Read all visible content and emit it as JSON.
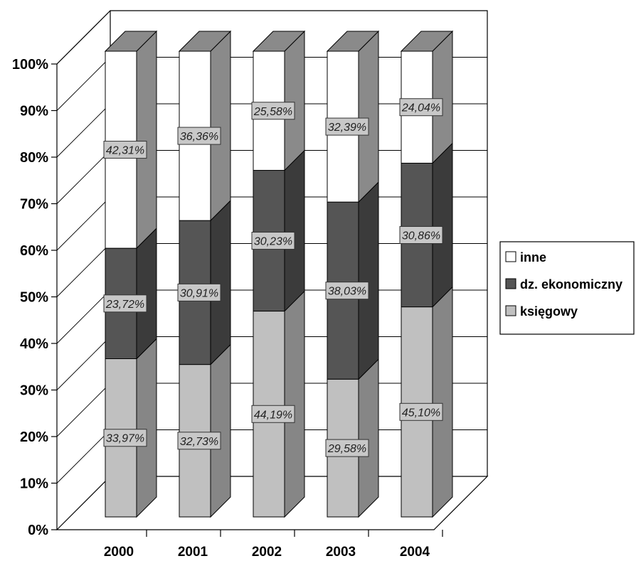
{
  "chart_data": {
    "type": "bar",
    "stacked": "percent",
    "three_d": true,
    "categories": [
      "2000",
      "2001",
      "2002",
      "2003",
      "2004"
    ],
    "series": [
      {
        "name": "księgowy",
        "values": [
          33.97,
          32.73,
          44.19,
          29.58,
          45.1
        ],
        "labels": [
          "33,97%",
          "32,73%",
          "44,19%",
          "29,58%",
          "45,10%"
        ],
        "color": "#c0c0c0"
      },
      {
        "name": "dz. ekonomiczny",
        "values": [
          23.72,
          30.91,
          30.23,
          38.03,
          30.86
        ],
        "labels": [
          "23,72%",
          "30,91%",
          "30,23%",
          "38,03%",
          "30,86%"
        ],
        "color": "#555555"
      },
      {
        "name": "inne",
        "values": [
          42.31,
          36.36,
          25.58,
          32.39,
          24.04
        ],
        "labels": [
          "42,31%",
          "36,36%",
          "25,58%",
          "32,39%",
          "24,04%"
        ],
        "color": "#ffffff"
      }
    ],
    "y_ticks": [
      "0%",
      "10%",
      "20%",
      "30%",
      "40%",
      "50%",
      "60%",
      "70%",
      "80%",
      "90%",
      "100%"
    ],
    "ylim": [
      0,
      100
    ],
    "grid": true,
    "legend": {
      "position": "right",
      "order": [
        "inne",
        "dz. ekonomiczny",
        "księgowy"
      ]
    }
  }
}
